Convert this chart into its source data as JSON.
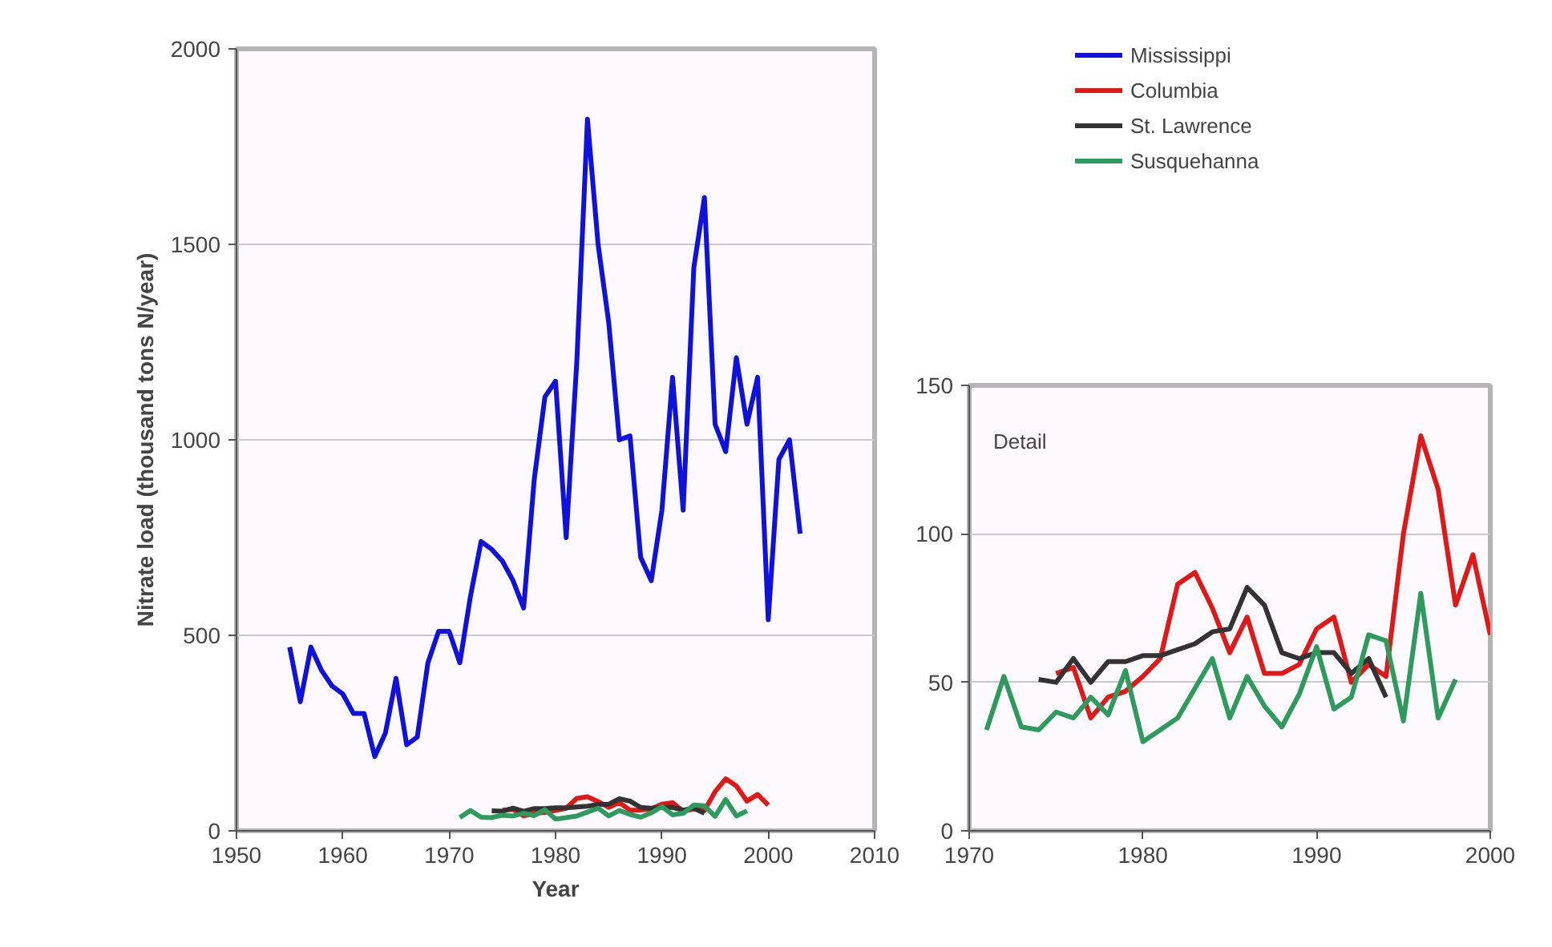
{
  "chart_data": [
    {
      "type": "line",
      "xlabel": "Year",
      "ylabel": "Nitrate load (thousand tons N/year)",
      "xlim": [
        1950,
        2010
      ],
      "xticks": [
        1950,
        1960,
        1970,
        1980,
        1990,
        2000,
        2010
      ],
      "ylim": [
        0,
        2000
      ],
      "yticks": [
        0,
        500,
        1000,
        1500,
        2000
      ],
      "grid": "y",
      "legend": "top right",
      "marker": "none",
      "line_style": "solid",
      "series": [
        {
          "name": "Mississippi",
          "color": "#1010e0",
          "x": [
            1955,
            1956,
            1957,
            1958,
            1959,
            1960,
            1961,
            1962,
            1963,
            1964,
            1965,
            1966,
            1967,
            1968,
            1969,
            1970,
            1971,
            1972,
            1973,
            1974,
            1975,
            1976,
            1977,
            1978,
            1979,
            1980,
            1981,
            1982,
            1983,
            1984,
            1985,
            1986,
            1987,
            1988,
            1989,
            1990,
            1991,
            1992,
            1993,
            1994,
            1995,
            1996,
            1997,
            1998,
            1999,
            2000,
            2001,
            2002,
            2003
          ],
          "values": [
            470,
            330,
            470,
            410,
            370,
            350,
            300,
            300,
            190,
            250,
            390,
            220,
            240,
            430,
            510,
            510,
            430,
            600,
            740,
            720,
            690,
            640,
            570,
            900,
            1110,
            1150,
            750,
            1200,
            1820,
            1500,
            1300,
            1000,
            1010,
            700,
            640,
            820,
            1160,
            820,
            1440,
            1620,
            1040,
            970,
            1210,
            1040,
            1160,
            540,
            950,
            1000,
            760
          ]
        },
        {
          "name": "Columbia",
          "color": "#e01818",
          "x": [
            1975,
            1976,
            1977,
            1978,
            1979,
            1980,
            1981,
            1982,
            1983,
            1984,
            1985,
            1986,
            1987,
            1988,
            1989,
            1990,
            1991,
            1992,
            1993,
            1994,
            1995,
            1996,
            1997,
            1998,
            1999,
            2000
          ],
          "values": [
            53,
            55,
            38,
            45,
            47,
            52,
            58,
            83,
            87,
            75,
            60,
            72,
            53,
            53,
            56,
            68,
            72,
            50,
            56,
            52,
            100,
            133,
            115,
            76,
            93,
            66
          ]
        },
        {
          "name": "St. Lawrence",
          "color": "#333333",
          "x": [
            1974,
            1975,
            1976,
            1977,
            1978,
            1979,
            1980,
            1981,
            1982,
            1983,
            1984,
            1985,
            1986,
            1987,
            1988,
            1989,
            1990,
            1991,
            1992,
            1993,
            1994
          ],
          "values": [
            51,
            50,
            58,
            50,
            57,
            57,
            59,
            59,
            61,
            63,
            67,
            68,
            82,
            76,
            60,
            58,
            60,
            60,
            53,
            58,
            45
          ]
        },
        {
          "name": "Susquehanna",
          "color": "#2e9a5e",
          "x": [
            1971,
            1972,
            1973,
            1974,
            1975,
            1976,
            1977,
            1978,
            1979,
            1980,
            1981,
            1982,
            1983,
            1984,
            1985,
            1986,
            1987,
            1988,
            1989,
            1990,
            1991,
            1992,
            1993,
            1994,
            1995,
            1996,
            1997,
            1998
          ],
          "values": [
            34,
            52,
            35,
            34,
            40,
            38,
            45,
            39,
            54,
            30,
            34,
            38,
            48,
            58,
            38,
            52,
            42,
            35,
            46,
            62,
            41,
            45,
            66,
            64,
            37,
            80,
            38,
            51
          ]
        }
      ]
    },
    {
      "type": "line",
      "annotations": [
        "Detail"
      ],
      "xlim": [
        1970,
        2000
      ],
      "xticks": [
        1970,
        1980,
        1990,
        2000
      ],
      "ylim": [
        0,
        150
      ],
      "yticks": [
        0,
        50,
        100,
        150
      ],
      "grid": "y",
      "marker": "none",
      "line_style": "solid",
      "series": [
        {
          "color": "#e01818",
          "x": [
            1975,
            1976,
            1977,
            1978,
            1979,
            1980,
            1981,
            1982,
            1983,
            1984,
            1985,
            1986,
            1987,
            1988,
            1989,
            1990,
            1991,
            1992,
            1993,
            1994,
            1995,
            1996,
            1997,
            1998,
            1999,
            2000
          ],
          "values": [
            53,
            55,
            38,
            45,
            47,
            52,
            58,
            83,
            87,
            75,
            60,
            72,
            53,
            53,
            56,
            68,
            72,
            50,
            56,
            52,
            100,
            133,
            115,
            76,
            93,
            66
          ]
        },
        {
          "color": "#333333",
          "x": [
            1974,
            1975,
            1976,
            1977,
            1978,
            1979,
            1980,
            1981,
            1982,
            1983,
            1984,
            1985,
            1986,
            1987,
            1988,
            1989,
            1990,
            1991,
            1992,
            1993,
            1994
          ],
          "values": [
            51,
            50,
            58,
            50,
            57,
            57,
            59,
            59,
            61,
            63,
            67,
            68,
            82,
            76,
            60,
            58,
            60,
            60,
            53,
            58,
            45
          ]
        },
        {
          "color": "#2e9a5e",
          "x": [
            1971,
            1972,
            1973,
            1974,
            1975,
            1976,
            1977,
            1978,
            1979,
            1980,
            1981,
            1982,
            1983,
            1984,
            1985,
            1986,
            1987,
            1988,
            1989,
            1990,
            1991,
            1992,
            1993,
            1994,
            1995,
            1996,
            1997,
            1998
          ],
          "values": [
            34,
            52,
            35,
            34,
            40,
            38,
            45,
            39,
            54,
            30,
            34,
            38,
            48,
            58,
            38,
            52,
            42,
            35,
            46,
            62,
            41,
            45,
            66,
            64,
            37,
            80,
            38,
            51
          ]
        }
      ]
    }
  ]
}
